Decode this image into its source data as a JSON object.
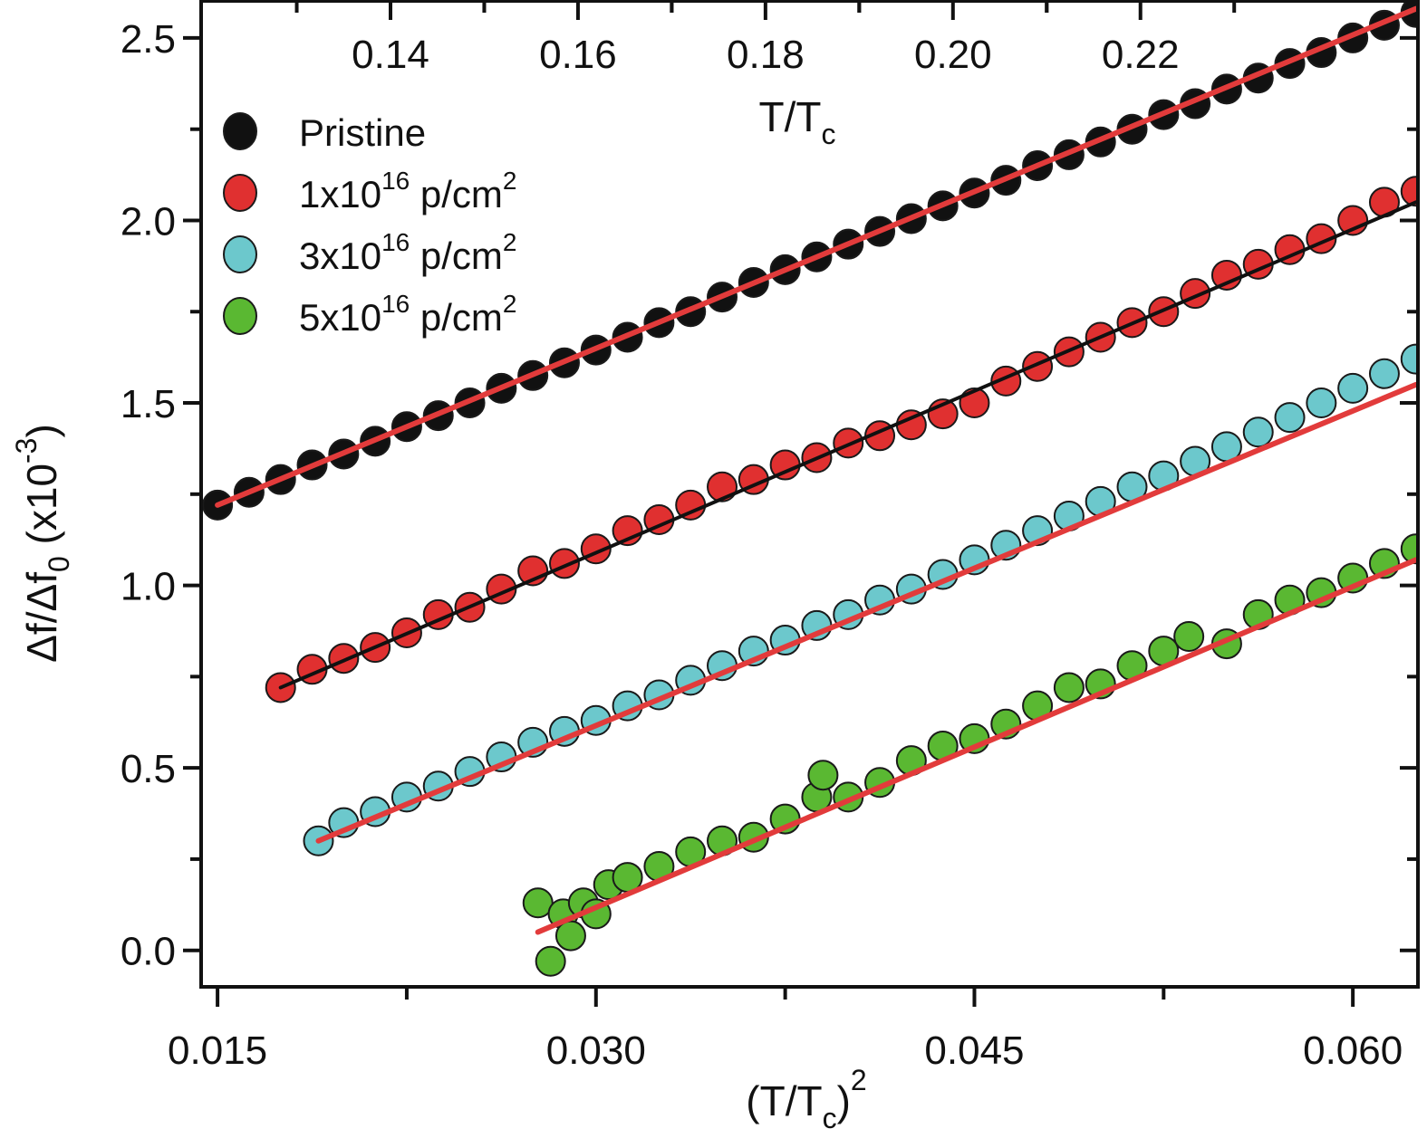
{
  "chart_data": {
    "type": "scatter",
    "xlabel": "(T/T_c)^2",
    "xlabel_parts": {
      "main": "(T/T",
      "sub": "c",
      "close": ")",
      "sup": "2"
    },
    "ylabel_parts": {
      "main": "Δf/Δf",
      "sub": "0",
      "mid": " (x10",
      "sup": "-3",
      "close": ")"
    },
    "top_xlabel_parts": {
      "main": "T/T",
      "sub": "c"
    },
    "xlim": [
      0.01435,
      0.06258
    ],
    "ylim": [
      -0.1,
      2.604
    ],
    "top_xlim": [
      0.1198,
      0.2496
    ],
    "x_ticks": [
      "0.015",
      "0.030",
      "0.045",
      "0.060"
    ],
    "y_ticks": [
      "0.0",
      "0.5",
      "1.0",
      "1.5",
      "2.0",
      "2.5"
    ],
    "top_x_ticks": [
      "0.14",
      "0.16",
      "0.18",
      "0.20",
      "0.22"
    ],
    "grid": false,
    "legend_position": "top-left",
    "series": [
      {
        "name": "Pristine",
        "name_parts": {
          "main": "Pristine"
        },
        "color": "#111111",
        "fit_color": "#e23b3b",
        "fit": [
          [
            0.015,
            1.22
          ],
          [
            0.0625,
            2.58
          ]
        ],
        "x": [
          0.015,
          0.01625,
          0.0175,
          0.01875,
          0.02,
          0.02125,
          0.0225,
          0.02375,
          0.025,
          0.02625,
          0.0275,
          0.02875,
          0.03,
          0.03125,
          0.0325,
          0.03375,
          0.035,
          0.03625,
          0.0375,
          0.03875,
          0.04,
          0.04125,
          0.0425,
          0.04375,
          0.045,
          0.04625,
          0.0475,
          0.04875,
          0.05,
          0.05125,
          0.0525,
          0.05375,
          0.055,
          0.05625,
          0.0575,
          0.05875,
          0.06,
          0.06125,
          0.0625
        ],
        "y": [
          1.22,
          1.255,
          1.29,
          1.33,
          1.36,
          1.395,
          1.435,
          1.465,
          1.5,
          1.54,
          1.575,
          1.61,
          1.645,
          1.68,
          1.72,
          1.75,
          1.79,
          1.83,
          1.865,
          1.9,
          1.935,
          1.97,
          2.005,
          2.04,
          2.075,
          2.11,
          2.15,
          2.18,
          2.215,
          2.25,
          2.29,
          2.32,
          2.36,
          2.39,
          2.43,
          2.46,
          2.5,
          2.535,
          2.57
        ]
      },
      {
        "name": "1x10^16 p/cm^2",
        "name_parts": {
          "main": "1x10",
          "sup": "16",
          "unit": " p/cm",
          "sup2": "2"
        },
        "color": "#e03030",
        "fit_color": "#111111",
        "fit": [
          [
            0.0175,
            0.72
          ],
          [
            0.0625,
            2.05
          ]
        ],
        "x": [
          0.0175,
          0.01875,
          0.02,
          0.02125,
          0.0225,
          0.02375,
          0.025,
          0.02625,
          0.0275,
          0.02875,
          0.03,
          0.03125,
          0.0325,
          0.03375,
          0.035,
          0.03625,
          0.0375,
          0.03875,
          0.04,
          0.04125,
          0.0425,
          0.04375,
          0.045,
          0.04625,
          0.0475,
          0.04875,
          0.05,
          0.05125,
          0.0525,
          0.05375,
          0.055,
          0.05625,
          0.0575,
          0.05875,
          0.06,
          0.06125,
          0.0625
        ],
        "y": [
          0.72,
          0.77,
          0.8,
          0.83,
          0.87,
          0.92,
          0.94,
          0.99,
          1.04,
          1.06,
          1.1,
          1.15,
          1.18,
          1.22,
          1.27,
          1.29,
          1.33,
          1.35,
          1.39,
          1.41,
          1.44,
          1.47,
          1.5,
          1.56,
          1.6,
          1.64,
          1.68,
          1.72,
          1.75,
          1.8,
          1.85,
          1.88,
          1.92,
          1.95,
          2.0,
          2.05,
          2.08
        ]
      },
      {
        "name": "3x10^16 p/cm^2",
        "name_parts": {
          "main": "3x10",
          "sup": "16",
          "unit": " p/cm",
          "sup2": "2"
        },
        "color": "#6cc8cc",
        "fit_color": "#e23b3b",
        "fit": [
          [
            0.019,
            0.3
          ],
          [
            0.0625,
            1.55
          ]
        ],
        "x": [
          0.019,
          0.02,
          0.02125,
          0.0225,
          0.02375,
          0.025,
          0.02625,
          0.0275,
          0.02875,
          0.03,
          0.03125,
          0.0325,
          0.03375,
          0.035,
          0.03625,
          0.0375,
          0.03875,
          0.04,
          0.04125,
          0.0425,
          0.04375,
          0.045,
          0.04625,
          0.0475,
          0.04875,
          0.05,
          0.05125,
          0.0525,
          0.05375,
          0.055,
          0.05625,
          0.0575,
          0.05875,
          0.06,
          0.06125,
          0.0625
        ],
        "y": [
          0.3,
          0.35,
          0.38,
          0.42,
          0.45,
          0.49,
          0.53,
          0.57,
          0.6,
          0.63,
          0.67,
          0.7,
          0.74,
          0.78,
          0.82,
          0.85,
          0.89,
          0.92,
          0.96,
          0.99,
          1.03,
          1.07,
          1.11,
          1.15,
          1.19,
          1.23,
          1.27,
          1.3,
          1.34,
          1.38,
          1.42,
          1.46,
          1.5,
          1.54,
          1.58,
          1.62
        ]
      },
      {
        "name": "5x10^16 p/cm^2",
        "name_parts": {
          "main": "5x10",
          "sup": "16",
          "unit": " p/cm",
          "sup2": "2"
        },
        "color": "#5ab832",
        "fit_color": "#e23b3b",
        "fit": [
          [
            0.0277,
            0.05
          ],
          [
            0.0625,
            1.07
          ]
        ],
        "x": [
          0.0277,
          0.0282,
          0.0287,
          0.029,
          0.0295,
          0.03,
          0.0305,
          0.03125,
          0.0325,
          0.03375,
          0.035,
          0.03625,
          0.0375,
          0.03875,
          0.039,
          0.04,
          0.04125,
          0.0425,
          0.04375,
          0.045,
          0.04625,
          0.0475,
          0.04875,
          0.05,
          0.05125,
          0.0525,
          0.0535,
          0.055,
          0.05625,
          0.0575,
          0.05875,
          0.06,
          0.06125,
          0.0625
        ],
        "y": [
          0.13,
          -0.03,
          0.1,
          0.04,
          0.13,
          0.1,
          0.18,
          0.2,
          0.23,
          0.27,
          0.3,
          0.31,
          0.36,
          0.42,
          0.48,
          0.42,
          0.46,
          0.52,
          0.56,
          0.58,
          0.62,
          0.67,
          0.72,
          0.73,
          0.78,
          0.82,
          0.86,
          0.84,
          0.92,
          0.96,
          0.98,
          1.02,
          1.06,
          1.1
        ]
      }
    ]
  }
}
